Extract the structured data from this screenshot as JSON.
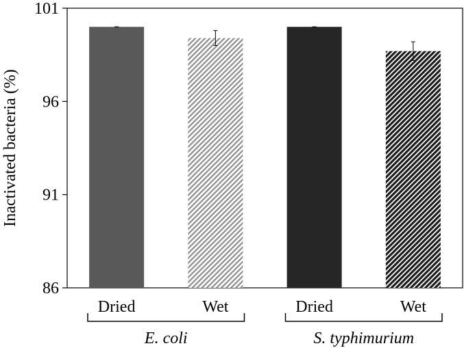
{
  "chart_data": {
    "type": "bar",
    "title": "",
    "xlabel": "",
    "ylabel": "Inactivated bacteria (%)",
    "ylim": [
      86,
      101
    ],
    "yticks": [
      86,
      91,
      96,
      101
    ],
    "grid": false,
    "legend": "none",
    "groups": [
      {
        "name": "E. coli",
        "categories": [
          "Dried",
          "Wet"
        ]
      },
      {
        "name": "S. typhimurium",
        "categories": [
          "Dried",
          "Wet"
        ]
      }
    ],
    "bars": [
      {
        "group": "E. coli",
        "category": "Dried",
        "value": 100.0,
        "error": 0.0,
        "color": "#595959",
        "pattern": "solid"
      },
      {
        "group": "E. coli",
        "category": "Wet",
        "value": 99.4,
        "error": 0.4,
        "color": "#bfbfbf",
        "pattern": "hatch"
      },
      {
        "group": "S. typhimurium",
        "category": "Dried",
        "value": 100.0,
        "error": 0.0,
        "color": "#262626",
        "pattern": "solid"
      },
      {
        "group": "S. typhimurium",
        "category": "Wet",
        "value": 98.7,
        "error": 0.5,
        "color": "#3a3a3a",
        "pattern": "hatch"
      }
    ]
  }
}
